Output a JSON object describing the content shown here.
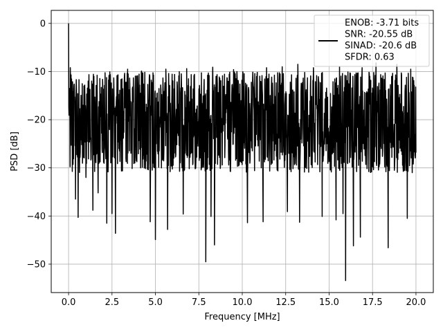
{
  "chart_data": {
    "type": "line",
    "title": "",
    "xlabel": "Frequency [MHz]",
    "ylabel": "PSD [dB]",
    "xlim": [
      -0.999,
      20.999
    ],
    "ylim": [
      -55.9,
      2.7
    ],
    "xticks": [
      0.0,
      2.5,
      5.0,
      7.5,
      10.0,
      12.5,
      15.0,
      17.5,
      20.0
    ],
    "xtick_labels": [
      "0.0",
      "2.5",
      "5.0",
      "7.5",
      "10.0",
      "12.5",
      "15.0",
      "17.5",
      "20.0"
    ],
    "yticks": [
      0,
      -10,
      -20,
      -30,
      -40,
      -50
    ],
    "ytick_labels": [
      "0",
      "−10",
      "−20",
      "−30",
      "−40",
      "−50"
    ],
    "grid": true,
    "legend_position": "top-right",
    "series": [
      {
        "name": "",
        "color": "#000000",
        "x_range": [
          0.0,
          20.0
        ],
        "peak": {
          "x": 0.0,
          "y": 0.0
        },
        "median_level": -20.5,
        "typical_band": [
          -31,
          -10
        ],
        "deep_nulls": [
          {
            "x": 0.25,
            "y": -28.5
          },
          {
            "x": 0.4,
            "y": -36.5
          },
          {
            "x": 0.55,
            "y": -40.3
          },
          {
            "x": 1.0,
            "y": -32
          },
          {
            "x": 1.4,
            "y": -38.8
          },
          {
            "x": 1.7,
            "y": -35.2
          },
          {
            "x": 2.2,
            "y": -41.5
          },
          {
            "x": 2.5,
            "y": -39.5
          },
          {
            "x": 2.7,
            "y": -43.6
          },
          {
            "x": 3.4,
            "y": -38.5
          },
          {
            "x": 4.7,
            "y": -41.2
          },
          {
            "x": 5.0,
            "y": -44.9
          },
          {
            "x": 5.7,
            "y": -42.8
          },
          {
            "x": 6.6,
            "y": -39.6
          },
          {
            "x": 7.9,
            "y": -49.5
          },
          {
            "x": 8.2,
            "y": -40.1
          },
          {
            "x": 8.4,
            "y": -46.0
          },
          {
            "x": 10.3,
            "y": -41.4
          },
          {
            "x": 11.2,
            "y": -41.2
          },
          {
            "x": 12.6,
            "y": -39.1
          },
          {
            "x": 13.3,
            "y": -41.3
          },
          {
            "x": 14.6,
            "y": -40.1
          },
          {
            "x": 15.4,
            "y": -40.8
          },
          {
            "x": 15.8,
            "y": -39.5
          },
          {
            "x": 15.95,
            "y": -53.4
          },
          {
            "x": 16.4,
            "y": -46.2
          },
          {
            "x": 16.8,
            "y": -44.4
          },
          {
            "x": 17.7,
            "y": -40.7
          },
          {
            "x": 18.4,
            "y": -46.6
          },
          {
            "x": 18.9,
            "y": -37.8
          },
          {
            "x": 19.5,
            "y": -40.5
          }
        ],
        "high_peaks": [
          {
            "x": 0.1,
            "y": -9.2
          },
          {
            "x": 1.6,
            "y": -13.6
          },
          {
            "x": 3.4,
            "y": -9.5
          },
          {
            "x": 4.2,
            "y": -9.9
          },
          {
            "x": 5.6,
            "y": -9.5
          },
          {
            "x": 6.8,
            "y": -9.4
          },
          {
            "x": 8.3,
            "y": -9.1
          },
          {
            "x": 9.5,
            "y": -9.6
          },
          {
            "x": 11.4,
            "y": -9.2
          },
          {
            "x": 12.3,
            "y": -9.0
          },
          {
            "x": 13.2,
            "y": -8.5
          },
          {
            "x": 14.1,
            "y": -9.2
          },
          {
            "x": 15.6,
            "y": -9.0
          },
          {
            "x": 16.9,
            "y": -9.2
          },
          {
            "x": 17.7,
            "y": -8.2
          },
          {
            "x": 18.9,
            "y": -8.5
          },
          {
            "x": 19.7,
            "y": -9.5
          }
        ]
      }
    ],
    "legend_lines": [
      "ENOB: -3.71 bits",
      "SNR: -20.55 dB",
      "SINAD: -20.6 dB",
      "SFDR: 0.63"
    ]
  }
}
